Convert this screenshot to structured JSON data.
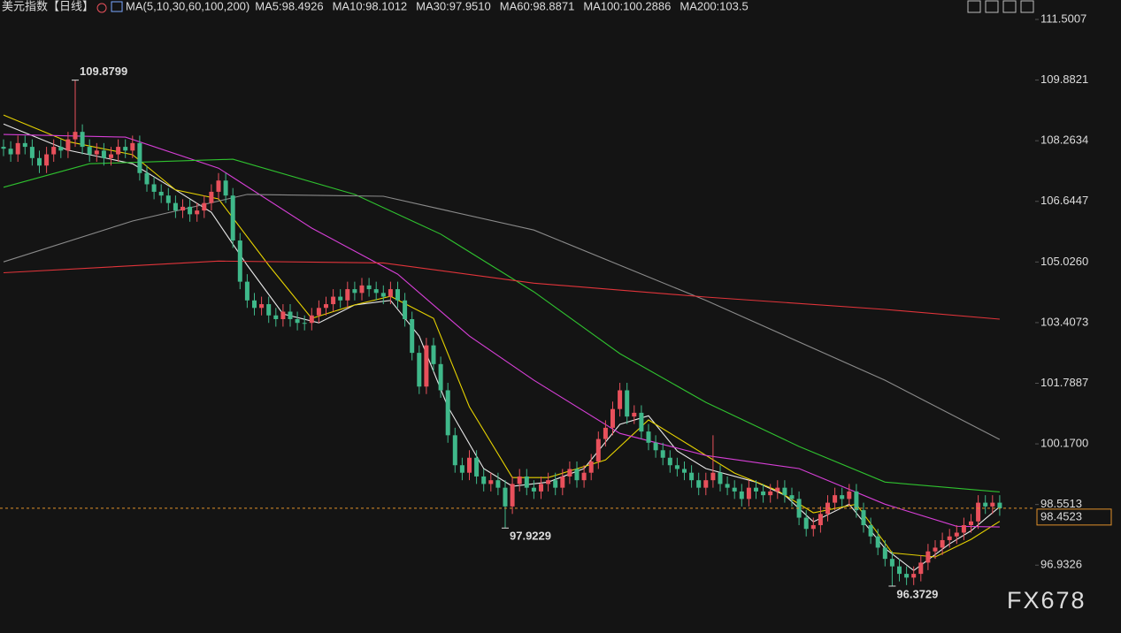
{
  "chart_data": {
    "type": "candlestick",
    "title": "美元指数",
    "period": "【日线】",
    "indicator": "MA(5,10,30,60,100,200)",
    "up_color": "#e8505b",
    "down_color": "#3fb88a",
    "open": [
      108.1,
      108.05,
      107.9,
      108.2,
      108.1,
      107.8,
      107.6,
      107.9,
      108.1,
      108.0,
      108.3,
      108.5,
      108.1,
      107.9,
      108.0,
      107.8,
      107.9,
      108.1,
      108.0,
      108.2,
      107.4,
      107.1,
      106.9,
      106.8,
      106.6,
      106.4,
      106.5,
      106.3,
      106.4,
      106.6,
      106.9,
      107.2,
      106.8,
      105.6,
      104.5,
      104.0,
      103.8,
      103.9,
      103.6,
      103.5,
      103.7,
      103.5,
      103.4,
      103.4,
      103.6,
      103.8,
      103.9,
      104.1,
      104.0,
      104.3,
      104.2,
      104.4,
      104.3,
      104.2,
      104.1,
      104.3,
      104.0,
      103.5,
      102.6,
      101.7,
      102.8,
      102.3,
      101.6,
      100.4,
      99.6,
      99.4,
      99.8,
      99.3,
      99.1,
      99.2,
      99.0,
      98.5,
      99.1,
      99.3,
      99.0,
      98.9,
      99.1,
      99.2,
      99.0,
      99.3,
      99.5,
      99.2,
      99.4,
      99.7,
      100.3,
      100.6,
      101.1,
      101.6,
      100.9,
      101.0,
      100.5,
      100.2,
      100.0,
      99.8,
      99.6,
      99.5,
      99.4,
      99.2,
      99.0,
      99.2,
      99.4,
      99.1,
      99.0,
      98.9,
      98.7,
      99.0,
      98.9,
      98.8,
      98.9,
      99.0,
      98.8,
      98.7,
      98.2,
      97.9,
      98.0,
      98.3,
      98.6,
      98.8,
      98.7,
      98.9,
      98.4,
      98.0,
      97.7,
      97.4,
      97.1,
      96.9,
      96.7,
      96.6,
      96.7,
      97.0,
      97.3,
      97.4,
      97.6,
      97.7,
      97.8,
      98.0,
      98.1,
      98.6,
      98.5,
      98.6
    ],
    "high": [
      108.3,
      108.25,
      108.4,
      108.4,
      108.3,
      108.0,
      108.1,
      108.3,
      108.3,
      108.5,
      109.8799,
      108.7,
      108.3,
      108.2,
      108.2,
      108.1,
      108.3,
      108.3,
      108.4,
      108.4,
      107.6,
      107.3,
      107.1,
      107.0,
      106.8,
      106.7,
      106.7,
      106.6,
      106.8,
      107.1,
      107.4,
      107.4,
      107.0,
      105.8,
      104.7,
      104.2,
      104.1,
      104.1,
      103.8,
      103.9,
      103.9,
      103.7,
      103.6,
      103.8,
      104.0,
      104.1,
      104.3,
      104.3,
      104.5,
      104.5,
      104.6,
      104.6,
      104.5,
      104.4,
      104.5,
      104.5,
      104.2,
      103.7,
      102.8,
      103.0,
      103.0,
      102.5,
      101.8,
      100.6,
      99.8,
      100.0,
      100.0,
      99.5,
      99.4,
      99.4,
      99.2,
      99.3,
      99.5,
      99.5,
      99.2,
      99.3,
      99.4,
      99.4,
      99.5,
      99.7,
      99.7,
      99.6,
      99.9,
      100.5,
      100.8,
      101.3,
      101.8,
      101.8,
      101.2,
      101.2,
      100.7,
      100.4,
      100.2,
      100.0,
      99.8,
      99.7,
      99.6,
      99.4,
      99.4,
      100.4,
      99.6,
      99.3,
      99.2,
      99.1,
      99.2,
      99.2,
      99.1,
      99.1,
      99.2,
      99.2,
      99.0,
      98.9,
      98.4,
      98.2,
      98.5,
      98.8,
      99.0,
      99.0,
      99.1,
      99.1,
      98.6,
      98.2,
      97.9,
      97.6,
      97.3,
      97.1,
      96.9,
      96.9,
      97.2,
      97.5,
      97.6,
      97.8,
      97.9,
      98.0,
      98.2,
      98.3,
      98.8,
      98.8,
      98.8,
      98.8
    ],
    "low": [
      107.85,
      107.7,
      107.7,
      107.9,
      107.6,
      107.4,
      107.4,
      107.7,
      107.8,
      107.8,
      108.1,
      107.9,
      107.7,
      107.7,
      107.6,
      107.6,
      107.7,
      107.8,
      107.8,
      107.2,
      106.9,
      106.7,
      106.6,
      106.4,
      106.2,
      106.2,
      106.1,
      106.1,
      106.2,
      106.4,
      106.7,
      106.6,
      105.4,
      104.3,
      103.8,
      103.6,
      103.6,
      103.4,
      103.3,
      103.3,
      103.3,
      103.2,
      103.2,
      103.2,
      103.4,
      103.6,
      103.7,
      103.8,
      103.8,
      104.0,
      104.0,
      104.1,
      104.0,
      103.9,
      103.9,
      103.8,
      103.3,
      102.4,
      101.5,
      101.5,
      102.1,
      101.4,
      100.2,
      99.4,
      99.2,
      99.2,
      99.1,
      98.9,
      98.9,
      98.8,
      97.9229,
      98.3,
      98.9,
      98.8,
      98.7,
      98.7,
      98.9,
      98.8,
      98.8,
      99.1,
      99.0,
      99.0,
      99.2,
      99.5,
      100.1,
      100.4,
      100.9,
      100.7,
      100.7,
      100.3,
      100.0,
      99.8,
      99.6,
      99.4,
      99.3,
      99.2,
      99.0,
      98.8,
      98.8,
      99.0,
      98.9,
      98.8,
      98.7,
      98.5,
      98.5,
      98.7,
      98.6,
      98.6,
      98.7,
      98.6,
      98.5,
      98.0,
      97.7,
      97.7,
      97.8,
      98.1,
      98.4,
      98.5,
      98.5,
      98.2,
      97.8,
      97.5,
      97.2,
      96.9,
      96.3729,
      96.5,
      96.4,
      96.4,
      96.5,
      96.8,
      97.1,
      97.2,
      97.4,
      97.5,
      97.6,
      97.8,
      97.9,
      98.3,
      98.3,
      98.25
    ],
    "close": [
      108.05,
      107.9,
      108.2,
      108.1,
      107.8,
      107.6,
      107.9,
      108.1,
      108.0,
      108.3,
      108.5,
      108.1,
      107.9,
      108.0,
      107.8,
      107.9,
      108.1,
      108.0,
      108.2,
      107.4,
      107.1,
      106.9,
      106.8,
      106.6,
      106.4,
      106.5,
      106.3,
      106.4,
      106.6,
      106.9,
      107.2,
      106.8,
      105.6,
      104.5,
      104.0,
      103.8,
      103.9,
      103.6,
      103.5,
      103.7,
      103.5,
      103.4,
      103.4,
      103.6,
      103.8,
      103.9,
      104.1,
      104.0,
      104.3,
      104.2,
      104.4,
      104.3,
      104.2,
      104.1,
      104.3,
      104.0,
      103.5,
      102.6,
      101.7,
      102.8,
      102.3,
      101.6,
      100.4,
      99.6,
      99.4,
      99.8,
      99.3,
      99.1,
      99.2,
      99.0,
      98.5,
      99.1,
      99.3,
      99.0,
      98.9,
      99.1,
      99.2,
      99.0,
      99.3,
      99.5,
      99.2,
      99.4,
      99.7,
      100.3,
      100.6,
      101.1,
      101.6,
      100.9,
      101.0,
      100.5,
      100.2,
      100.0,
      99.8,
      99.6,
      99.5,
      99.4,
      99.2,
      99.0,
      99.2,
      99.4,
      99.1,
      99.0,
      98.9,
      98.7,
      99.0,
      98.9,
      98.8,
      98.9,
      99.0,
      98.8,
      98.7,
      98.2,
      97.9,
      98.0,
      98.3,
      98.6,
      98.8,
      98.7,
      98.9,
      98.4,
      98.0,
      97.7,
      97.4,
      97.1,
      96.9,
      96.7,
      96.6,
      96.7,
      97.0,
      97.3,
      97.4,
      97.6,
      97.7,
      97.8,
      98.0,
      98.1,
      98.6,
      98.5,
      98.6,
      98.45
    ],
    "series": [
      {
        "name": "MA5:98.4926",
        "color": "#e8e8e8",
        "x": [
          0,
          9,
          18,
          24,
          29,
          34,
          39,
          44,
          49,
          54,
          58,
          62,
          67,
          71,
          76,
          81,
          86,
          90,
          94,
          98,
          105,
          109,
          113,
          118,
          123,
          127,
          132,
          135,
          139
        ],
        "values": [
          108.71,
          108.01,
          107.65,
          106.95,
          106.35,
          104.94,
          103.64,
          103.4,
          103.88,
          104.0,
          103.05,
          101.16,
          99.51,
          99.04,
          99.15,
          99.51,
          100.69,
          100.92,
          99.98,
          99.51,
          99.15,
          98.8,
          98.09,
          98.56,
          97.38,
          96.79,
          97.5,
          97.85,
          98.4926
        ]
      },
      {
        "name": "MA10:98.1012",
        "color": "#e6d200",
        "x": [
          0,
          9,
          18,
          24,
          30,
          37,
          43,
          49,
          54,
          60,
          65,
          71,
          76,
          84,
          90,
          96,
          102,
          108,
          113,
          119,
          124,
          130,
          135,
          139
        ],
        "values": [
          108.95,
          108.24,
          107.89,
          106.95,
          106.71,
          104.94,
          103.52,
          103.88,
          104.11,
          103.52,
          101.16,
          99.27,
          99.27,
          99.74,
          100.81,
          100.1,
          99.39,
          98.92,
          98.33,
          98.56,
          97.26,
          97.15,
          97.62,
          98.1012
        ]
      },
      {
        "name": "MA30:97.9510",
        "color": "#d63fd6",
        "x": [
          0,
          17,
          30,
          43,
          55,
          65,
          74,
          86,
          98,
          111,
          123,
          133,
          139
        ],
        "values": [
          108.43,
          108.36,
          107.53,
          105.93,
          104.7,
          103.05,
          101.87,
          100.45,
          99.86,
          99.51,
          98.56,
          97.97,
          97.951
        ]
      },
      {
        "name": "MA60:98.8871",
        "color": "#2fc22f",
        "x": [
          0,
          12,
          32,
          49,
          61,
          74,
          86,
          98,
          111,
          123,
          139
        ],
        "values": [
          107.02,
          107.65,
          107.77,
          106.83,
          105.77,
          104.23,
          102.58,
          101.28,
          100.1,
          99.15,
          98.8871
        ]
      },
      {
        "name": "MA100:100.2886",
        "color": "#8a8a8a",
        "x": [
          0,
          18,
          34,
          53,
          74,
          98,
          123,
          139
        ],
        "values": [
          105.03,
          106.12,
          106.83,
          106.78,
          105.88,
          104.0,
          101.87,
          100.2886
        ]
      },
      {
        "name": "MA200:103.5",
        "color": "#e0343a",
        "x": [
          0,
          30,
          53,
          74,
          98,
          123,
          139
        ],
        "values": [
          104.74,
          105.05,
          105.0,
          104.46,
          104.09,
          103.76,
          103.5
        ]
      }
    ],
    "ylim": [
      95.9,
      112.02
    ],
    "yticks": [
      111.5007,
      109.8821,
      108.2634,
      106.6447,
      {
        "value": 105.026,
        "label": "105.0260"
      },
      103.4073,
      101.7887,
      {
        "value": 100.17,
        "label": "100.1700"
      },
      98.5513,
      96.9326
    ],
    "last_price": 98.4523,
    "last_price_color": "#e0902a",
    "annotations": [
      {
        "x": 10,
        "value": 109.8799,
        "color": "#e8505b"
      },
      {
        "x": 70,
        "value": 97.9229,
        "color": "#3fb88a"
      },
      {
        "x": 124,
        "value": 96.3729,
        "color": "#3fb88a"
      }
    ],
    "watermark": "FX678"
  }
}
